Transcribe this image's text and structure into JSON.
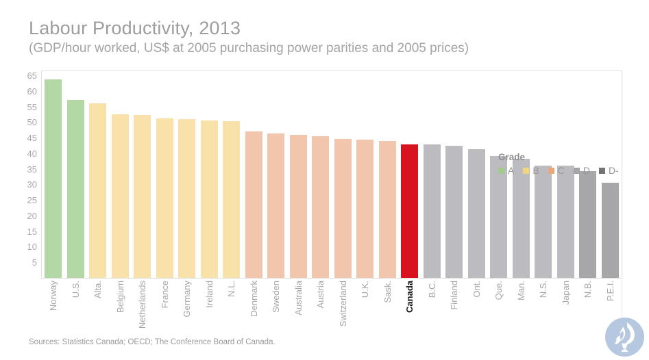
{
  "title": "Labour Productivity, 2013",
  "subtitle": "(GDP/hour worked, US$ at 2005 purchasing power parities and 2005 prices)",
  "source": "Sources: Statistics Canada; OECD; The Conference Board of Canada.",
  "legend": {
    "title": "Grade",
    "items": [
      {
        "label": "A",
        "color": "#9fca8a"
      },
      {
        "label": "B",
        "color": "#f2d583"
      },
      {
        "label": "C",
        "color": "#eba77b"
      },
      {
        "label": "D",
        "color": "#a3a3a8"
      },
      {
        "label": "D-",
        "color": "#737378"
      }
    ]
  },
  "colors": {
    "grade_bar_colors": {
      "A": "#b3d8a5",
      "B": "#f8e2a9",
      "C": "#f1c6ad",
      "D": "#bcbcc0",
      "D-": "#a7a7aa",
      "highlight": "#d9121f"
    },
    "title_gray": "#9d9da0",
    "axis_text_gray": "#a8a8ab",
    "highlight_label_black": "#141414",
    "logo_blue": "#b5c8df"
  },
  "chart_data": {
    "type": "bar",
    "title": "Labour Productivity, 2013",
    "subtitle": "(GDP/hour worked, US$ at 2005 purchasing power parities and 2005 prices)",
    "xlabel": "",
    "ylabel": "",
    "ylim": [
      0,
      66.8
    ],
    "yticks": [
      5,
      10,
      15,
      20,
      25,
      30,
      35,
      40,
      45,
      50,
      55,
      60,
      65
    ],
    "grid": false,
    "legend_position": "top-right",
    "bars": [
      {
        "label": "Norway",
        "value": 63.6,
        "grade": "A",
        "highlight": false
      },
      {
        "label": "U.S.",
        "value": 57.0,
        "grade": "A",
        "highlight": false
      },
      {
        "label": "Alta.",
        "value": 56.0,
        "grade": "B",
        "highlight": false
      },
      {
        "label": "Belgium",
        "value": 52.5,
        "grade": "B",
        "highlight": false
      },
      {
        "label": "Netherlands",
        "value": 52.2,
        "grade": "B",
        "highlight": false
      },
      {
        "label": "France",
        "value": 51.1,
        "grade": "B",
        "highlight": false
      },
      {
        "label": "Germany",
        "value": 50.9,
        "grade": "B",
        "highlight": false
      },
      {
        "label": "Ireland",
        "value": 50.6,
        "grade": "B",
        "highlight": false
      },
      {
        "label": "N.L.",
        "value": 50.4,
        "grade": "B",
        "highlight": false
      },
      {
        "label": "Denmark",
        "value": 46.9,
        "grade": "C",
        "highlight": false
      },
      {
        "label": "Sweden",
        "value": 46.4,
        "grade": "C",
        "highlight": false
      },
      {
        "label": "Australia",
        "value": 45.9,
        "grade": "C",
        "highlight": false
      },
      {
        "label": "Austria",
        "value": 45.5,
        "grade": "C",
        "highlight": false
      },
      {
        "label": "Switzerland",
        "value": 44.5,
        "grade": "C",
        "highlight": false
      },
      {
        "label": "U.K.",
        "value": 44.4,
        "grade": "C",
        "highlight": false
      },
      {
        "label": "Sask.",
        "value": 43.9,
        "grade": "C",
        "highlight": false
      },
      {
        "label": "Canada",
        "value": 42.9,
        "grade": null,
        "highlight": true
      },
      {
        "label": "B.C.",
        "value": 42.8,
        "grade": "D",
        "highlight": false
      },
      {
        "label": "Finland",
        "value": 42.3,
        "grade": "D",
        "highlight": false
      },
      {
        "label": "Ont.",
        "value": 41.4,
        "grade": "D",
        "highlight": false
      },
      {
        "label": "Que.",
        "value": 39.1,
        "grade": "D",
        "highlight": false
      },
      {
        "label": "Man.",
        "value": 38.2,
        "grade": "D",
        "highlight": false
      },
      {
        "label": "N.S.",
        "value": 36.1,
        "grade": "D",
        "highlight": false
      },
      {
        "label": "Japan",
        "value": 36.0,
        "grade": "D",
        "highlight": false
      },
      {
        "label": "N.B.",
        "value": 34.2,
        "grade": "D-",
        "highlight": false
      },
      {
        "label": "P.E.I.",
        "value": 30.5,
        "grade": "D-",
        "highlight": false
      }
    ]
  }
}
